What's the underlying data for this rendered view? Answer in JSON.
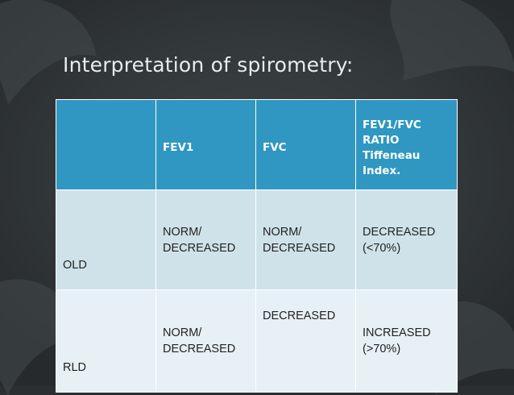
{
  "slide": {
    "title": "Interpretation of spirometry:"
  },
  "table": {
    "headers": [
      "",
      "FEV1",
      "FVC",
      "FEV1/FVC\nRATIO\nTiffeneau\nIndex."
    ],
    "rows": [
      {
        "label": "OLD",
        "fev1": "NORM/\nDECREASED",
        "fvc": "NORM/\nDECREASED",
        "ratio": "DECREASED\n(<70%)"
      },
      {
        "label": "RLD",
        "fev1": "NORM/\nDECREASED",
        "fvc": "DECREASED",
        "ratio": "INCREASED\n(>70%)"
      }
    ]
  },
  "colors": {
    "header_bg": "#2f97c1",
    "row1_bg": "#cfe2ea",
    "row2_bg": "#e7f0f4",
    "slide_bg": "#2b2f31"
  }
}
